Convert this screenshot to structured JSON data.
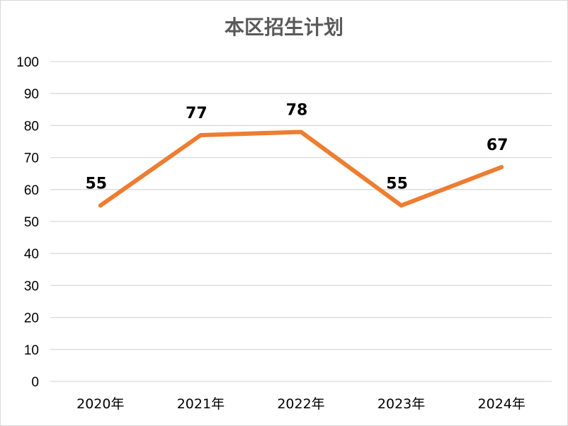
{
  "chart_data": {
    "type": "line",
    "title": "本区招生计划",
    "categories": [
      "2020年",
      "2021年",
      "2022年",
      "2023年",
      "2024年"
    ],
    "values": [
      55,
      77,
      78,
      55,
      67
    ],
    "data_labels": [
      "55",
      "77",
      "78",
      "55",
      "67"
    ],
    "ylim": [
      0,
      100
    ],
    "yticks": [
      0,
      10,
      20,
      30,
      40,
      50,
      60,
      70,
      80,
      90,
      100
    ],
    "xlabel": "",
    "ylabel": "",
    "grid": true,
    "legend": "none",
    "line_color": "#ED7D31",
    "grid_color": "#D9D9D9"
  }
}
